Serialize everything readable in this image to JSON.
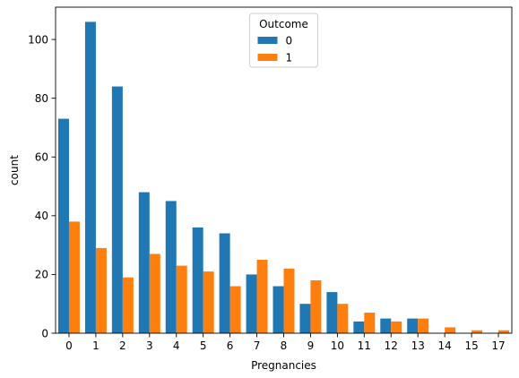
{
  "chart_data": {
    "type": "bar",
    "title": "",
    "xlabel": "Pregnancies",
    "ylabel": "count",
    "categories": [
      "0",
      "1",
      "2",
      "3",
      "4",
      "5",
      "6",
      "7",
      "8",
      "9",
      "10",
      "11",
      "12",
      "13",
      "14",
      "15",
      "17"
    ],
    "series": [
      {
        "name": "0",
        "color": "#1f77b4",
        "values": [
          73,
          106,
          84,
          48,
          45,
          36,
          34,
          20,
          16,
          10,
          14,
          4,
          5,
          5,
          0,
          0,
          0
        ]
      },
      {
        "name": "1",
        "color": "#ff7f0e",
        "values": [
          38,
          29,
          19,
          27,
          23,
          21,
          16,
          25,
          22,
          18,
          10,
          7,
          4,
          5,
          2,
          1,
          1
        ]
      }
    ],
    "ylim": [
      0,
      111
    ],
    "yticks": [
      0,
      20,
      40,
      60,
      80,
      100
    ],
    "legend": {
      "title": "Outcome",
      "placement": "upper-center"
    }
  }
}
